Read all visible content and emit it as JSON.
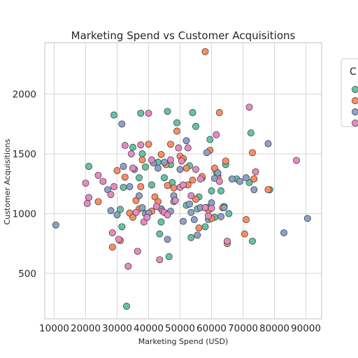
{
  "chart_data": {
    "type": "scatter",
    "title": "Marketing Spend vs Customer Acquisitions",
    "xlabel": "Marketing Spend (USD)",
    "ylabel": "Customer Acquisitions",
    "xlim": [
      7000,
      95000
    ],
    "ylim": [
      120,
      2430
    ],
    "xticks": [
      10000,
      20000,
      30000,
      40000,
      50000,
      60000,
      70000,
      80000,
      90000
    ],
    "yticks": [
      500,
      1000,
      1500,
      2000
    ],
    "grid": true,
    "legend": {
      "placement": "outside-top-right",
      "title": "C"
    },
    "series": [
      {
        "color": "#66c2a5",
        "points": [
          [
            21000,
            1395
          ],
          [
            29000,
            1825
          ],
          [
            31000,
            1035
          ],
          [
            31500,
            890
          ],
          [
            32000,
            1220
          ],
          [
            33000,
            225
          ],
          [
            35000,
            1555
          ],
          [
            37000,
            1300
          ],
          [
            37500,
            1840
          ],
          [
            38000,
            1500
          ],
          [
            39000,
            1390
          ],
          [
            41000,
            1240
          ],
          [
            43000,
            1430
          ],
          [
            43500,
            830
          ],
          [
            44000,
            930
          ],
          [
            45000,
            1300
          ],
          [
            46000,
            1855
          ],
          [
            46500,
            640
          ],
          [
            47000,
            1410
          ],
          [
            47500,
            1260
          ],
          [
            48000,
            1100
          ],
          [
            49000,
            1760
          ],
          [
            51000,
            1460
          ],
          [
            52000,
            1070
          ],
          [
            53000,
            1400
          ],
          [
            53500,
            800
          ],
          [
            54000,
            1845
          ],
          [
            55000,
            1730
          ],
          [
            55500,
            1040
          ],
          [
            56000,
            1140
          ],
          [
            57000,
            1300
          ],
          [
            58000,
            890
          ],
          [
            58500,
            1050
          ],
          [
            59000,
            950
          ],
          [
            59500,
            1620
          ],
          [
            60000,
            1190
          ],
          [
            61000,
            970
          ],
          [
            61500,
            1350
          ],
          [
            62000,
            1320
          ],
          [
            63000,
            1190
          ],
          [
            64000,
            1060
          ],
          [
            64500,
            1410
          ],
          [
            65500,
            1000
          ],
          [
            68000,
            1290
          ],
          [
            72000,
            1260
          ],
          [
            72500,
            1675
          ],
          [
            73000,
            770
          ],
          [
            78500,
            1200
          ]
        ]
      },
      {
        "color": "#fc8d62",
        "points": [
          [
            24000,
            1100
          ],
          [
            28500,
            720
          ],
          [
            30000,
            1360
          ],
          [
            31000,
            775
          ],
          [
            32500,
            1305
          ],
          [
            34000,
            1005
          ],
          [
            35000,
            970
          ],
          [
            36000,
            1110
          ],
          [
            37000,
            1040
          ],
          [
            37500,
            1225
          ],
          [
            38000,
            1450
          ],
          [
            40000,
            1580
          ],
          [
            41000,
            1020
          ],
          [
            42000,
            1140
          ],
          [
            43000,
            1100
          ],
          [
            44000,
            1495
          ],
          [
            45500,
            1410
          ],
          [
            46000,
            1235
          ],
          [
            47000,
            1580
          ],
          [
            48000,
            1215
          ],
          [
            49000,
            1690
          ],
          [
            50000,
            1480
          ],
          [
            51000,
            1460
          ],
          [
            52000,
            1380
          ],
          [
            52500,
            1240
          ],
          [
            54000,
            1280
          ],
          [
            55000,
            1120
          ],
          [
            56000,
            880
          ],
          [
            57000,
            1310
          ],
          [
            58000,
            2355
          ],
          [
            59000,
            1030
          ],
          [
            59500,
            1530
          ],
          [
            60000,
            960
          ],
          [
            61000,
            1380
          ],
          [
            62000,
            1300
          ],
          [
            62500,
            1845
          ],
          [
            63500,
            1050
          ],
          [
            64500,
            1440
          ],
          [
            65000,
            750
          ],
          [
            70500,
            830
          ],
          [
            71000,
            950
          ],
          [
            73000,
            1510
          ],
          [
            73500,
            1290
          ],
          [
            78000,
            1200
          ]
        ]
      },
      {
        "color": "#8da0cb",
        "points": [
          [
            10500,
            905
          ],
          [
            27000,
            1200
          ],
          [
            28000,
            1025
          ],
          [
            30000,
            990
          ],
          [
            31500,
            1750
          ],
          [
            32000,
            1395
          ],
          [
            34000,
            1225
          ],
          [
            35500,
            1370
          ],
          [
            37000,
            1150
          ],
          [
            38000,
            1050
          ],
          [
            39000,
            1000
          ],
          [
            40000,
            1005
          ],
          [
            41500,
            1425
          ],
          [
            43000,
            1380
          ],
          [
            44000,
            1040
          ],
          [
            45000,
            1430
          ],
          [
            46000,
            785
          ],
          [
            47000,
            1020
          ],
          [
            48000,
            1150
          ],
          [
            50000,
            1370
          ],
          [
            51000,
            935
          ],
          [
            52000,
            1610
          ],
          [
            53000,
            1080
          ],
          [
            53500,
            1010
          ],
          [
            54500,
            950
          ],
          [
            55500,
            820
          ],
          [
            56500,
            1050
          ],
          [
            58500,
            1510
          ],
          [
            60000,
            1090
          ],
          [
            61000,
            1295
          ],
          [
            62000,
            1340
          ],
          [
            63000,
            975
          ],
          [
            64000,
            1050
          ],
          [
            66500,
            1290
          ],
          [
            69000,
            1270
          ],
          [
            71000,
            1300
          ],
          [
            73500,
            1200
          ],
          [
            78000,
            1585
          ],
          [
            83000,
            840
          ],
          [
            90500,
            960
          ]
        ]
      },
      {
        "color": "#e78ac3",
        "points": [
          [
            20000,
            1255
          ],
          [
            20500,
            1085
          ],
          [
            21000,
            1135
          ],
          [
            24000,
            1320
          ],
          [
            25500,
            1270
          ],
          [
            28000,
            1160
          ],
          [
            28500,
            840
          ],
          [
            29000,
            1225
          ],
          [
            30500,
            785
          ],
          [
            32500,
            1570
          ],
          [
            33500,
            560
          ],
          [
            34500,
            1500
          ],
          [
            35000,
            1380
          ],
          [
            36000,
            1010
          ],
          [
            36500,
            685
          ],
          [
            37500,
            1575
          ],
          [
            38500,
            930
          ],
          [
            39500,
            970
          ],
          [
            40000,
            1840
          ],
          [
            41000,
            1450
          ],
          [
            42500,
            1060
          ],
          [
            43500,
            615
          ],
          [
            44500,
            1020
          ],
          [
            45000,
            1010
          ],
          [
            46000,
            990
          ],
          [
            47000,
            1450
          ],
          [
            48500,
            1110
          ],
          [
            49500,
            1550
          ],
          [
            50000,
            1220
          ],
          [
            50500,
            1440
          ],
          [
            51000,
            1240
          ],
          [
            52500,
            1550
          ],
          [
            53500,
            1150
          ],
          [
            55000,
            1370
          ],
          [
            56500,
            1290
          ],
          [
            58000,
            1050
          ],
          [
            59000,
            980
          ],
          [
            60000,
            1045
          ],
          [
            61500,
            1660
          ],
          [
            62500,
            1270
          ],
          [
            65000,
            770
          ],
          [
            72000,
            1890
          ],
          [
            74000,
            1350
          ],
          [
            87000,
            1445
          ]
        ]
      }
    ]
  }
}
